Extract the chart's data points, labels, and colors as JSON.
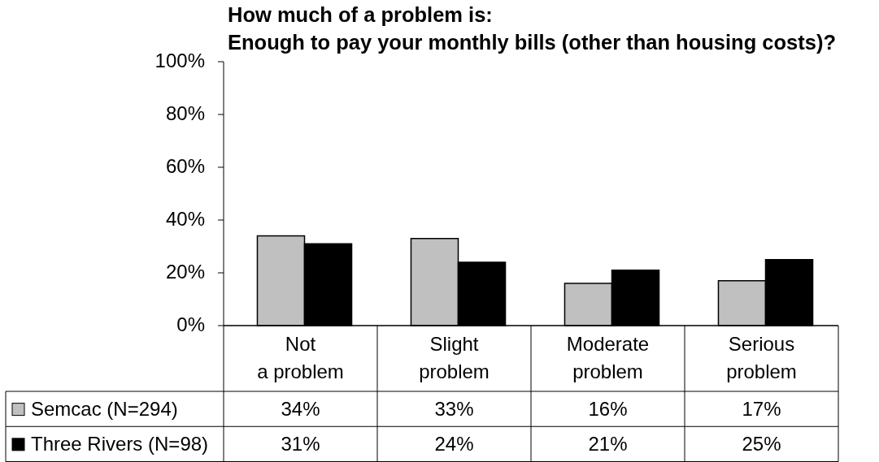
{
  "chart_data": {
    "type": "bar",
    "title": "How much of a problem is:\nEnough to pay your monthly bills (other than housing costs)?",
    "categories": [
      "Not\na problem",
      "Slight\nproblem",
      "Moderate\nproblem",
      "Serious\nproblem"
    ],
    "series": [
      {
        "name": "Semcac (N=294)",
        "color": "#c0c0c0",
        "values": [
          34,
          33,
          16,
          17
        ],
        "value_labels": [
          "34%",
          "33%",
          "16%",
          "17%"
        ]
      },
      {
        "name": "Three Rivers (N=98)",
        "color": "#000000",
        "values": [
          31,
          24,
          21,
          25
        ],
        "value_labels": [
          "31%",
          "24%",
          "21%",
          "25%"
        ]
      }
    ],
    "ylim": [
      0,
      100
    ],
    "yticks": [
      {
        "value": 0,
        "label": "0%"
      },
      {
        "value": 20,
        "label": "20%"
      },
      {
        "value": 40,
        "label": "40%"
      },
      {
        "value": 60,
        "label": "60%"
      },
      {
        "value": 80,
        "label": "80%"
      },
      {
        "value": 100,
        "label": "100%"
      }
    ],
    "legend": "bottom left"
  }
}
